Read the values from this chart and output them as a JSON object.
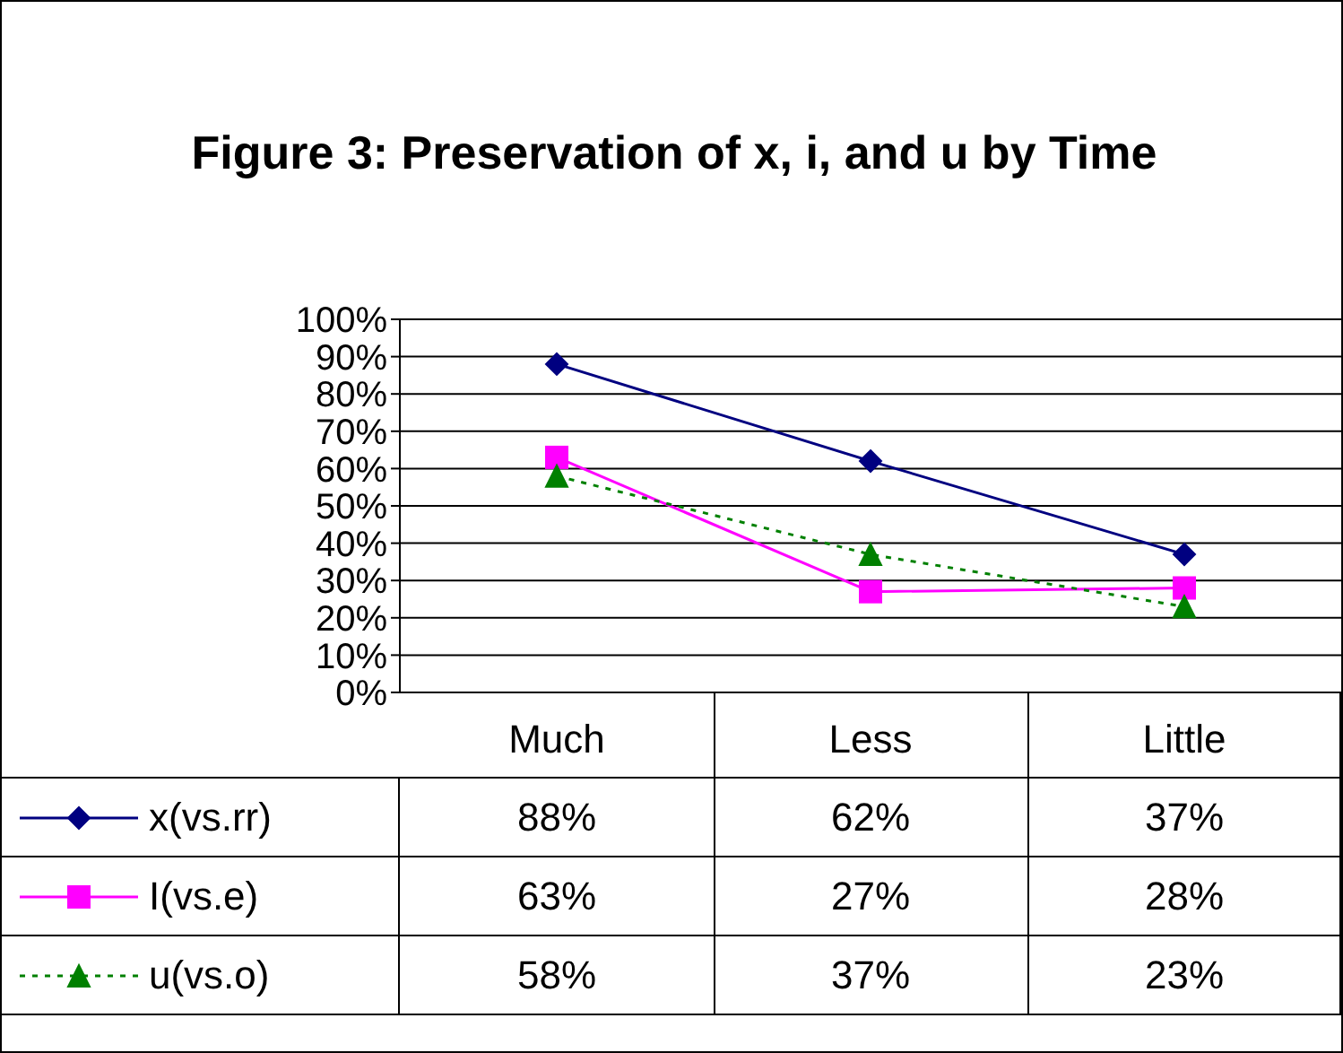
{
  "chart_data": {
    "type": "line",
    "title": "Figure 3: Preservation of x, i, and u by Time",
    "categories": [
      "Much",
      "Less",
      "Little"
    ],
    "series": [
      {
        "name": "x(vs.rr)",
        "color": "#000080",
        "values": [
          88,
          62,
          37
        ],
        "value_labels": [
          "88%",
          "62%",
          "37%"
        ],
        "marker": "diamond",
        "line_style": "solid"
      },
      {
        "name": "I(vs.e)",
        "color": "#ff00ff",
        "values": [
          63,
          27,
          28
        ],
        "value_labels": [
          "63%",
          "27%",
          "28%"
        ],
        "marker": "square",
        "line_style": "solid"
      },
      {
        "name": "u(vs.o)",
        "color": "#008000",
        "values": [
          58,
          37,
          23
        ],
        "value_labels": [
          "58%",
          "37%",
          "23%"
        ],
        "marker": "triangle",
        "line_style": "dotted"
      }
    ],
    "ylim": [
      0,
      100
    ],
    "yticks": [
      {
        "value": 0,
        "label": "0%"
      },
      {
        "value": 10,
        "label": "10%"
      },
      {
        "value": 20,
        "label": "20%"
      },
      {
        "value": 30,
        "label": "30%"
      },
      {
        "value": 40,
        "label": "40%"
      },
      {
        "value": 50,
        "label": "50%"
      },
      {
        "value": 60,
        "label": "60%"
      },
      {
        "value": 70,
        "label": "70%"
      },
      {
        "value": 80,
        "label": "80%"
      },
      {
        "value": 90,
        "label": "90%"
      },
      {
        "value": 100,
        "label": "100%"
      }
    ],
    "grid": "y",
    "legend": "bottom left"
  }
}
